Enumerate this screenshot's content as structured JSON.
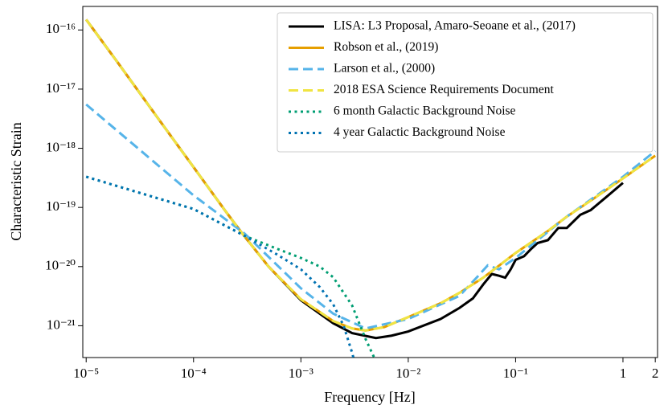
{
  "chart_data": {
    "type": "line",
    "xlabel": "Frequency [Hz]",
    "ylabel": "Characteristic Strain",
    "xscale": "log",
    "yscale": "log",
    "xlim": [
      9.3e-06,
      2.1
    ],
    "ylim": [
      2.9e-22,
      2.5e-16
    ],
    "xticks": [
      {
        "value": 1e-05,
        "label": "10⁻⁵"
      },
      {
        "value": 0.0001,
        "label": "10⁻⁴"
      },
      {
        "value": 0.001,
        "label": "10⁻³"
      },
      {
        "value": 0.01,
        "label": "10⁻²"
      },
      {
        "value": 0.1,
        "label": "10⁻¹"
      },
      1,
      2
    ],
    "yticks": [
      {
        "value": 1e-21,
        "label": "10⁻²¹"
      },
      {
        "value": 1e-20,
        "label": "10⁻²⁰"
      },
      {
        "value": 1e-19,
        "label": "10⁻¹⁹"
      },
      {
        "value": 1e-18,
        "label": "10⁻¹⁸"
      },
      {
        "value": 1e-17,
        "label": "10⁻¹⁷"
      },
      {
        "value": 1e-16,
        "label": "10⁻¹⁶"
      }
    ],
    "legend": "upper right",
    "series": [
      {
        "name": "LISA: L3 Proposal, Amaro-Seoane et al., (2017)",
        "color": "#000000",
        "linestyle": "solid",
        "x": [
          1e-05,
          2e-05,
          5e-05,
          0.0001,
          0.0002,
          0.0003,
          0.0005,
          0.001,
          0.002,
          0.003,
          0.005,
          0.007,
          0.01,
          0.02,
          0.03,
          0.04,
          0.05,
          0.06,
          0.07,
          0.08,
          0.09,
          0.1,
          0.12,
          0.14,
          0.16,
          0.2,
          0.25,
          0.3,
          0.4,
          0.5,
          0.7,
          1
        ],
        "values": [
          1.5e-16,
          2.7e-17,
          2.7e-18,
          4.8e-19,
          8.5e-20,
          3.2e-20,
          1e-20,
          2.7e-21,
          1.1e-21,
          7.5e-22,
          6.2e-22,
          6.8e-22,
          8e-22,
          1.3e-21,
          2e-21,
          2.9e-21,
          5e-21,
          7.5e-21,
          7e-21,
          6.5e-21,
          9e-21,
          1.3e-20,
          1.5e-20,
          2e-20,
          2.5e-20,
          2.8e-20,
          4.5e-20,
          4.5e-20,
          7.5e-20,
          9e-20,
          1.5e-19,
          2.6e-19
        ]
      },
      {
        "name": "Robson et al., (2019)",
        "color": "#e69f00",
        "linestyle": "solid",
        "x": [
          1e-05,
          2e-05,
          5e-05,
          0.0001,
          0.0002,
          0.0003,
          0.0005,
          0.001,
          0.002,
          0.003,
          0.004,
          0.006,
          0.01,
          0.02,
          0.03,
          0.05,
          0.1,
          0.2,
          0.3,
          0.5,
          1,
          2
        ],
        "values": [
          1.5e-16,
          2.7e-17,
          2.7e-18,
          4.8e-19,
          8.5e-20,
          3.2e-20,
          1e-20,
          2.8e-21,
          1.2e-21,
          9e-22,
          8.3e-22,
          9.5e-22,
          1.4e-21,
          2.4e-21,
          3.6e-21,
          6.5e-21,
          1.7e-20,
          4e-20,
          7e-20,
          1.3e-19,
          3.1e-19,
          7.5e-19
        ]
      },
      {
        "name": "Larson et al., (2000)",
        "color": "#56b4e9",
        "linestyle": "dashed",
        "x": [
          1e-05,
          0.0001,
          0.0003,
          0.001,
          0.002,
          0.004,
          0.01,
          0.03,
          0.045,
          0.055,
          0.07,
          0.1,
          0.3,
          1,
          2
        ],
        "values": [
          5.5e-18,
          1.6e-19,
          3.6e-20,
          4.3e-21,
          1.6e-21,
          9e-22,
          1.3e-21,
          3.2e-21,
          7e-21,
          1.05e-20,
          9e-21,
          1.4e-20,
          7e-20,
          3.3e-19,
          9e-19
        ]
      },
      {
        "name": "2018 ESA Science Requirements Document",
        "color": "#f0e442",
        "linestyle": "dashed",
        "x": [
          1e-05,
          2e-05,
          5e-05,
          0.0001,
          0.0002,
          0.0003,
          0.0005,
          0.001,
          0.002,
          0.003,
          0.004,
          0.006,
          0.01,
          0.02,
          0.03,
          0.05,
          0.1,
          0.2,
          0.3,
          0.5,
          1,
          2
        ],
        "values": [
          1.5e-16,
          2.7e-17,
          2.7e-18,
          4.8e-19,
          8.5e-20,
          3.2e-20,
          1e-20,
          2.8e-21,
          1.2e-21,
          9e-22,
          8.3e-22,
          9.5e-22,
          1.4e-21,
          2.4e-21,
          3.6e-21,
          6.5e-21,
          1.7e-20,
          4e-20,
          7e-20,
          1.3e-19,
          3.1e-19,
          7.5e-19
        ]
      },
      {
        "name": "6 month Galactic Background Noise",
        "color": "#009e73",
        "linestyle": "dotted",
        "x": [
          1e-05,
          0.0001,
          0.0003,
          0.0006,
          0.001,
          0.0015,
          0.002,
          0.003,
          0.004,
          0.005,
          0.0055
        ],
        "values": [
          3.3e-19,
          9.4e-20,
          3.3e-20,
          2e-20,
          1.4e-20,
          1e-20,
          6.6e-21,
          2.2e-21,
          6e-22,
          2.5e-22,
          1.5e-22
        ]
      },
      {
        "name": "4 year Galactic Background Noise",
        "color": "#0072b2",
        "linestyle": "dotted",
        "x": [
          1e-05,
          0.0001,
          0.0003,
          0.0006,
          0.001,
          0.0015,
          0.002,
          0.0025,
          0.003,
          0.0033
        ],
        "values": [
          3.3e-19,
          9.4e-20,
          3.3e-20,
          1.6e-20,
          9e-21,
          4.5e-21,
          2.3e-21,
          1e-21,
          3.5e-22,
          1.8e-22
        ]
      }
    ]
  }
}
